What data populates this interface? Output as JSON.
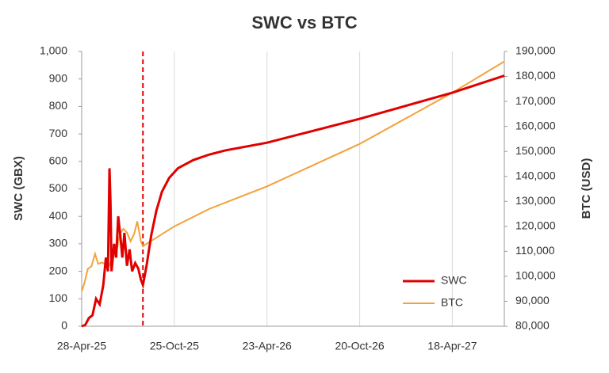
{
  "chart_data": {
    "type": "line",
    "title": "SWC vs BTC",
    "y_label": "SWC (GBX)",
    "y2_label": "BTC (USD)",
    "xlim": [
      "2025-04-28",
      "2027-07-28"
    ],
    "xticks": [
      {
        "value": "2025-04-28",
        "label": "28-Apr-25"
      },
      {
        "value": "2025-10-25",
        "label": "25-Oct-25"
      },
      {
        "value": "2026-04-23",
        "label": "23-Apr-26"
      },
      {
        "value": "2026-10-20",
        "label": "20-Oct-26"
      },
      {
        "value": "2027-04-18",
        "label": "18-Apr-27"
      }
    ],
    "ylim": [
      0,
      1000
    ],
    "yticks": [
      0,
      100,
      200,
      300,
      400,
      500,
      600,
      700,
      800,
      900,
      {
        "value": 1000,
        "label": "1,000"
      }
    ],
    "y2lim": [
      80000,
      190000
    ],
    "y2ticks": [
      {
        "value": 80000,
        "label": "80,000"
      },
      {
        "value": 90000,
        "label": "90,000"
      },
      {
        "value": 100000,
        "label": "100,000"
      },
      {
        "value": 110000,
        "label": "110,000"
      },
      {
        "value": 120000,
        "label": "120,000"
      },
      {
        "value": 130000,
        "label": "130,000"
      },
      {
        "value": 140000,
        "label": "140,000"
      },
      {
        "value": 150000,
        "label": "150,000"
      },
      {
        "value": 160000,
        "label": "160,000"
      },
      {
        "value": 170000,
        "label": "170,000"
      },
      {
        "value": 180000,
        "label": "180,000"
      },
      {
        "value": 190000,
        "label": "190,000"
      }
    ],
    "vline_x": "2025-08-25",
    "vline_color": "#e00000",
    "grid": true,
    "legend": "lower right",
    "series": [
      {
        "name": "SWC",
        "color": "#e00000",
        "x": [
          "2025-04-28",
          "2025-05-05",
          "2025-05-12",
          "2025-05-19",
          "2025-05-26",
          "2025-06-02",
          "2025-06-09",
          "2025-06-14",
          "2025-06-18",
          "2025-06-21",
          "2025-06-23",
          "2025-06-25",
          "2025-06-30",
          "2025-07-04",
          "2025-07-08",
          "2025-07-12",
          "2025-07-16",
          "2025-07-20",
          "2025-07-25",
          "2025-07-30",
          "2025-08-04",
          "2025-08-10",
          "2025-08-16",
          "2025-08-21",
          "2025-08-25",
          "2025-09-01",
          "2025-09-10",
          "2025-09-20",
          "2025-10-01",
          "2025-10-15",
          "2025-11-01",
          "2025-12-01",
          "2026-01-01",
          "2026-02-01",
          "2026-04-23",
          "2026-10-20",
          "2027-04-18",
          "2027-07-28"
        ],
        "values": [
          0,
          5,
          30,
          40,
          100,
          80,
          150,
          250,
          200,
          575,
          450,
          200,
          300,
          250,
          400,
          330,
          250,
          340,
          220,
          280,
          200,
          230,
          210,
          170,
          150,
          220,
          330,
          420,
          490,
          540,
          575,
          605,
          625,
          640,
          668,
          755,
          850,
          912
        ]
      },
      {
        "name": "BTC",
        "color": "#f4a13a",
        "axis": "y2",
        "x": [
          "2025-04-28",
          "2025-05-03",
          "2025-05-10",
          "2025-05-17",
          "2025-05-24",
          "2025-05-30",
          "2025-06-06",
          "2025-06-13",
          "2025-06-20",
          "2025-06-27",
          "2025-07-04",
          "2025-07-11",
          "2025-07-18",
          "2025-07-25",
          "2025-08-01",
          "2025-08-08",
          "2025-08-14",
          "2025-08-21",
          "2025-08-25",
          "2025-09-01",
          "2025-10-25",
          "2026-01-01",
          "2026-04-23",
          "2026-10-20",
          "2027-04-18",
          "2027-07-28"
        ],
        "values": [
          94000,
          97000,
          103000,
          104000,
          109000,
          105000,
          105500,
          105000,
          104000,
          107500,
          109000,
          117000,
          119000,
          117500,
          114000,
          117000,
          122000,
          114000,
          112000,
          113000,
          120000,
          127000,
          136000,
          153000,
          173500,
          186000
        ]
      }
    ]
  }
}
